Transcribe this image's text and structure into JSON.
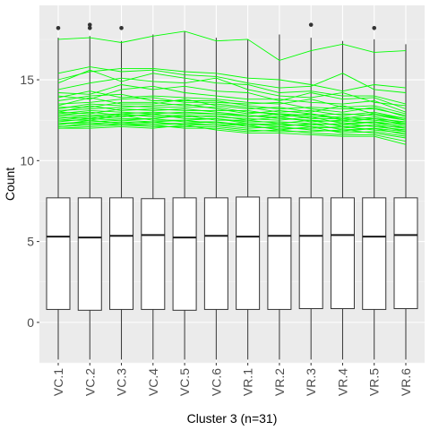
{
  "chart_data": {
    "type": "box",
    "title": "",
    "xlabel": "Cluster 3 (n=31)",
    "ylabel": "Count",
    "ylim": [
      -2.5,
      19.6
    ],
    "y_ticks": [
      0,
      5,
      10,
      15
    ],
    "grid": true,
    "categories": [
      "VC.1",
      "VC.2",
      "VC.3",
      "VC.4",
      "VC.5",
      "VC.6",
      "VR.1",
      "VR.2",
      "VR.3",
      "VR.4",
      "VR.5",
      "VR.6"
    ],
    "boxes": [
      {
        "q1": 0.8,
        "median": 5.3,
        "q3": 7.7,
        "whisker_low": -2.3,
        "whisker_high": 17.6,
        "outliers": [
          18.2
        ]
      },
      {
        "q1": 0.75,
        "median": 5.25,
        "q3": 7.7,
        "whisker_low": -2.3,
        "whisker_high": 17.7,
        "outliers": [
          18.2,
          18.4
        ]
      },
      {
        "q1": 0.8,
        "median": 5.35,
        "q3": 7.7,
        "whisker_low": -2.3,
        "whisker_high": 17.4,
        "outliers": [
          18.2
        ]
      },
      {
        "q1": 0.8,
        "median": 5.4,
        "q3": 7.65,
        "whisker_low": -2.3,
        "whisker_high": 17.8,
        "outliers": []
      },
      {
        "q1": 0.75,
        "median": 5.25,
        "q3": 7.7,
        "whisker_low": -2.3,
        "whisker_high": 18.0,
        "outliers": []
      },
      {
        "q1": 0.8,
        "median": 5.35,
        "q3": 7.7,
        "whisker_low": -2.3,
        "whisker_high": 17.6,
        "outliers": []
      },
      {
        "q1": 0.8,
        "median": 5.3,
        "q3": 7.75,
        "whisker_low": -2.3,
        "whisker_high": 17.5,
        "outliers": []
      },
      {
        "q1": 0.8,
        "median": 5.35,
        "q3": 7.7,
        "whisker_low": -2.3,
        "whisker_high": 17.8,
        "outliers": []
      },
      {
        "q1": 0.85,
        "median": 5.35,
        "q3": 7.7,
        "whisker_low": -2.3,
        "whisker_high": 17.6,
        "outliers": [
          18.4
        ]
      },
      {
        "q1": 0.85,
        "median": 5.4,
        "q3": 7.7,
        "whisker_low": -2.3,
        "whisker_high": 17.4,
        "outliers": []
      },
      {
        "q1": 0.8,
        "median": 5.3,
        "q3": 7.7,
        "whisker_low": -2.3,
        "whisker_high": 17.5,
        "outliers": [
          18.2
        ]
      },
      {
        "q1": 0.85,
        "median": 5.4,
        "q3": 7.7,
        "whisker_low": -2.3,
        "whisker_high": 17.2,
        "outliers": []
      }
    ],
    "line_color": "#00ff00",
    "lines": [
      [
        17.5,
        17.6,
        17.3,
        17.7,
        18.0,
        17.4,
        17.5,
        16.2,
        16.8,
        17.2,
        16.7,
        16.8
      ],
      [
        15.4,
        15.8,
        15.5,
        15.6,
        15.3,
        15.2,
        14.8,
        14.5,
        14.6,
        15.4,
        14.4,
        14.2
      ],
      [
        15.0,
        15.5,
        15.7,
        15.7,
        15.5,
        15.4,
        15.1,
        15.0,
        14.7,
        14.3,
        14.7,
        14.5
      ],
      [
        14.8,
        15.6,
        14.9,
        15.4,
        15.1,
        14.8,
        14.7,
        14.2,
        14.3,
        14.0,
        14.0,
        13.5
      ],
      [
        14.4,
        14.8,
        15.1,
        14.9,
        14.8,
        15.1,
        14.4,
        14.0,
        13.9,
        14.2,
        13.6,
        13.4
      ],
      [
        14.2,
        14.1,
        14.7,
        14.4,
        14.6,
        14.3,
        14.2,
        13.7,
        14.2,
        13.8,
        13.9,
        13.2
      ],
      [
        14.0,
        13.8,
        14.4,
        14.6,
        14.2,
        14.0,
        13.8,
        13.8,
        13.6,
        13.5,
        13.7,
        13.0
      ],
      [
        13.9,
        14.3,
        13.9,
        14.0,
        13.9,
        13.8,
        13.6,
        13.5,
        13.8,
        13.3,
        13.4,
        12.9
      ],
      [
        13.7,
        14.0,
        14.1,
        13.7,
        13.7,
        13.7,
        13.4,
        13.2,
        13.3,
        13.2,
        13.2,
        12.8
      ],
      [
        13.5,
        13.6,
        13.8,
        13.9,
        13.6,
        13.6,
        13.5,
        13.6,
        13.2,
        13.0,
        13.3,
        12.7
      ],
      [
        13.4,
        13.9,
        13.5,
        13.5,
        13.8,
        13.4,
        13.2,
        13.3,
        13.0,
        13.4,
        12.9,
        12.6
      ],
      [
        13.3,
        13.3,
        13.6,
        13.6,
        13.4,
        13.5,
        13.3,
        13.0,
        13.1,
        12.8,
        13.0,
        12.6
      ],
      [
        13.2,
        13.5,
        13.4,
        13.3,
        13.3,
        13.3,
        13.0,
        12.9,
        12.8,
        12.9,
        12.8,
        12.5
      ],
      [
        13.1,
        13.2,
        13.3,
        13.4,
        13.5,
        13.2,
        12.9,
        13.1,
        12.9,
        12.6,
        12.9,
        12.5
      ],
      [
        13.0,
        13.4,
        13.1,
        13.2,
        13.1,
        13.1,
        13.1,
        12.8,
        12.7,
        12.7,
        12.6,
        12.4
      ],
      [
        13.0,
        12.9,
        13.2,
        13.1,
        13.2,
        13.0,
        12.8,
        12.7,
        12.9,
        12.5,
        12.7,
        12.3
      ],
      [
        12.9,
        13.1,
        13.0,
        12.9,
        13.0,
        12.9,
        12.7,
        12.9,
        12.6,
        12.6,
        12.5,
        12.3
      ],
      [
        12.8,
        12.8,
        12.9,
        13.0,
        12.9,
        12.9,
        12.8,
        12.6,
        12.5,
        12.4,
        12.6,
        12.2
      ],
      [
        12.8,
        13.0,
        12.8,
        12.8,
        12.8,
        12.7,
        12.6,
        12.5,
        12.7,
        12.3,
        12.4,
        12.2
      ],
      [
        12.7,
        12.6,
        12.9,
        12.7,
        12.7,
        12.8,
        12.5,
        12.7,
        12.4,
        12.5,
        12.3,
        12.1
      ],
      [
        12.6,
        12.8,
        12.7,
        12.9,
        12.6,
        12.6,
        12.4,
        12.4,
        12.3,
        12.2,
        12.4,
        12.0
      ],
      [
        12.5,
        12.7,
        12.6,
        12.6,
        12.8,
        12.5,
        12.5,
        12.3,
        12.5,
        12.1,
        12.2,
        12.0
      ],
      [
        12.5,
        12.5,
        12.8,
        12.5,
        12.5,
        12.6,
        12.3,
        12.2,
        12.2,
        12.3,
        12.1,
        11.9
      ],
      [
        12.4,
        12.6,
        12.5,
        12.6,
        12.4,
        12.4,
        12.2,
        12.3,
        12.1,
        12.0,
        12.2,
        11.8
      ],
      [
        12.3,
        12.4,
        12.5,
        12.4,
        12.5,
        12.3,
        12.3,
        12.1,
        12.3,
        11.9,
        12.0,
        11.8
      ],
      [
        12.3,
        12.3,
        12.4,
        12.3,
        12.3,
        12.4,
        12.1,
        12.0,
        12.0,
        12.1,
        11.9,
        11.7
      ],
      [
        12.2,
        12.5,
        12.3,
        12.4,
        12.2,
        12.2,
        12.0,
        12.1,
        11.9,
        11.8,
        12.0,
        11.6
      ],
      [
        12.1,
        12.2,
        12.3,
        12.2,
        12.3,
        12.2,
        12.2,
        11.9,
        12.1,
        11.7,
        11.8,
        11.5
      ],
      [
        12.1,
        12.3,
        12.2,
        12.1,
        12.1,
        12.1,
        11.9,
        11.8,
        11.8,
        11.9,
        11.7,
        11.4
      ],
      [
        12.0,
        12.1,
        12.2,
        12.2,
        12.0,
        12.0,
        11.8,
        11.9,
        11.7,
        11.6,
        11.6,
        11.2
      ],
      [
        12.0,
        12.0,
        12.1,
        12.0,
        12.2,
        11.9,
        11.7,
        11.7,
        11.6,
        11.5,
        11.5,
        11.0
      ]
    ]
  },
  "colors": {
    "panel": "#ebebeb",
    "grid_major": "#ffffff",
    "grid_minor": "#f5f5f5",
    "box_fill": "#ffffff",
    "box_stroke": "#333333",
    "tick_text": "#4d4d4d"
  }
}
